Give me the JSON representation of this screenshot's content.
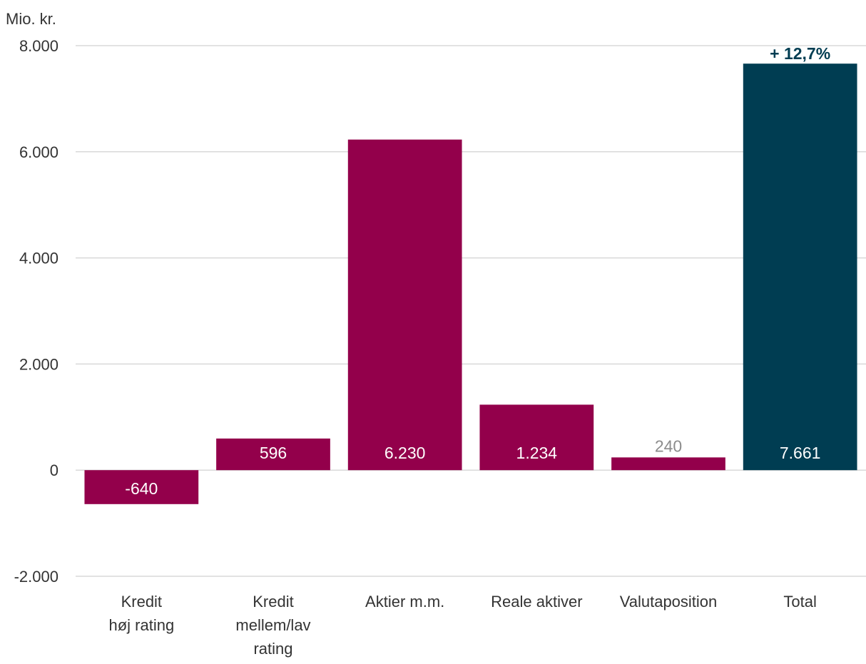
{
  "chart_data": {
    "type": "bar",
    "y_unit_label": "Mio. kr.",
    "ylim": [
      -2000,
      8000
    ],
    "yticks": [
      -2000,
      0,
      2000,
      4000,
      6000,
      8000
    ],
    "ytick_labels": [
      "-2.000",
      "0",
      "2.000",
      "4.000",
      "6.000",
      "8.000"
    ],
    "grid": true,
    "categories": [
      [
        "Kredit",
        "høj rating"
      ],
      [
        "Kredit",
        "mellem/lav",
        "rating"
      ],
      [
        "Aktier m.m."
      ],
      [
        "Reale aktiver"
      ],
      [
        "Valutaposition"
      ],
      [
        "Total"
      ]
    ],
    "values": [
      -640,
      596,
      6230,
      1234,
      240,
      7661
    ],
    "value_labels": [
      "-640",
      "596",
      "6.230",
      "1.234",
      "240",
      "7.661"
    ],
    "total_annotation": "+ 12,7%",
    "colors": {
      "component": "#93004b",
      "total": "#003d52",
      "grid": "#d9d9d9",
      "axis_text": "#333333",
      "label_inside": "#ffffff",
      "label_outside": "#8c8c8c",
      "annotation": "#003d52"
    }
  }
}
